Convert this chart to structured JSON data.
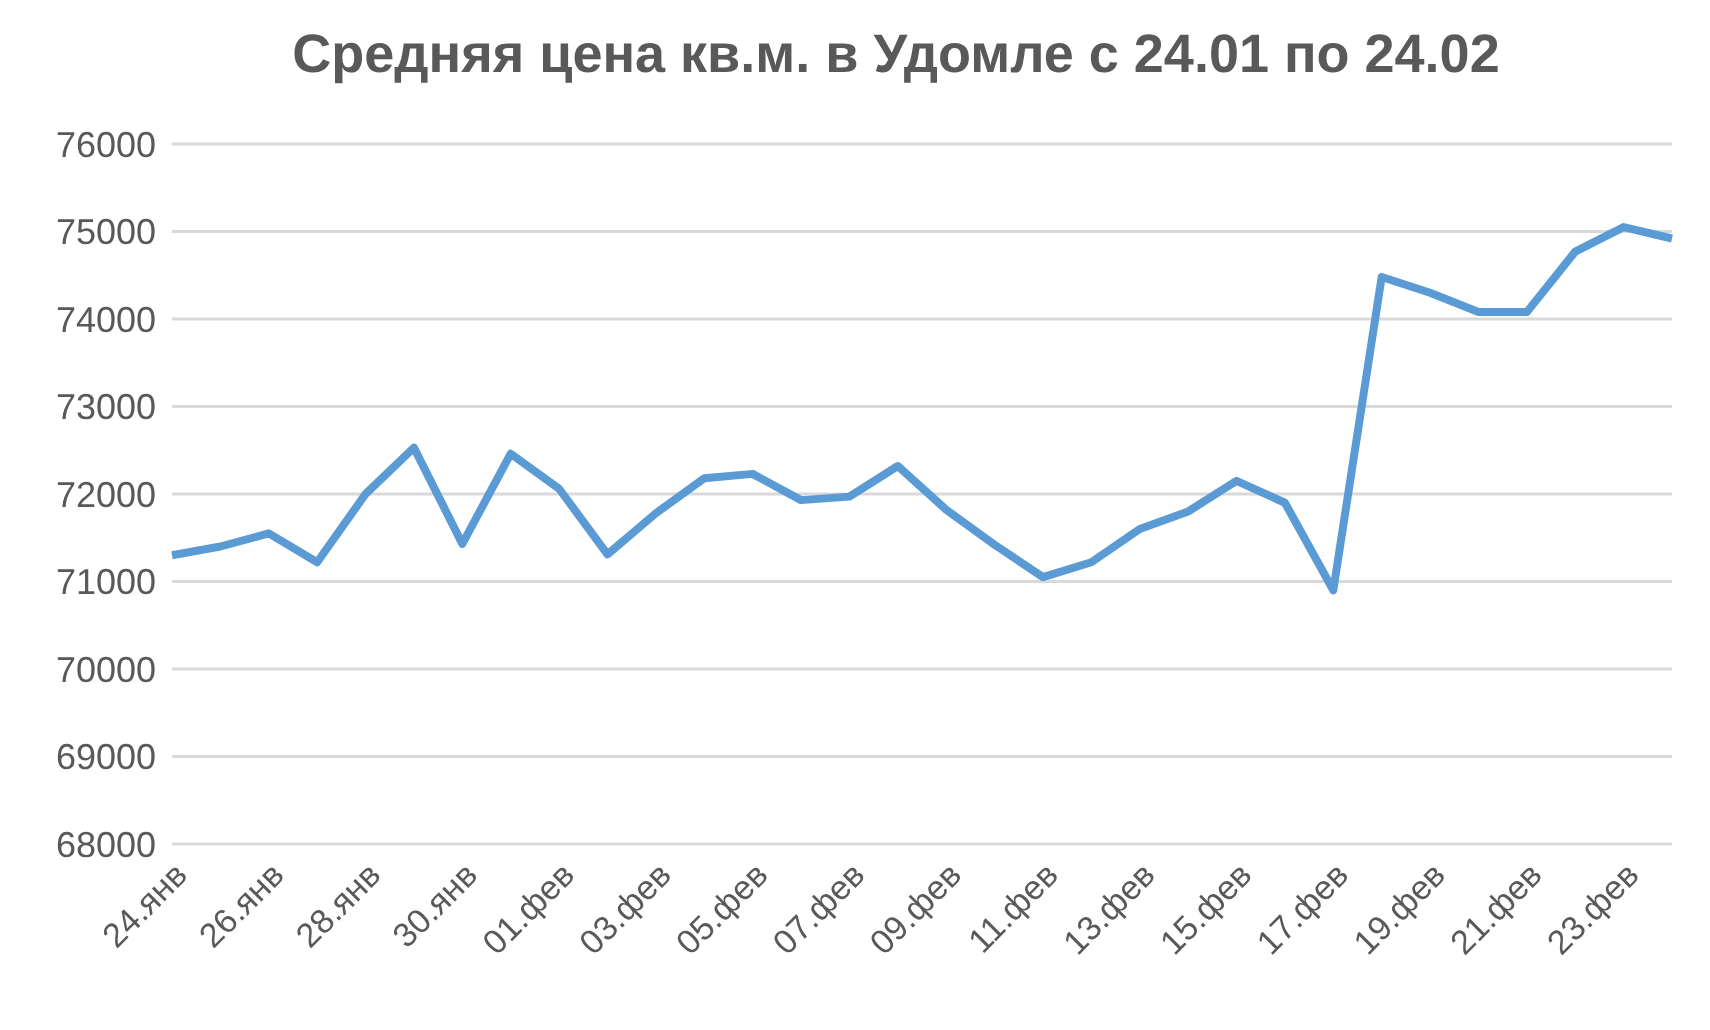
{
  "chart_data": {
    "type": "line",
    "title": "Средняя цена кв.м. в Удомле с 24.01 по 24.02",
    "categories": [
      "24.янв",
      null,
      "26.янв",
      null,
      "28.янв",
      null,
      "30.янв",
      null,
      "01.фев",
      null,
      "03.фев",
      null,
      "05.фев",
      null,
      "07.фев",
      null,
      "09.фев",
      null,
      "11.фев",
      null,
      "13.фев",
      null,
      "15.фев",
      null,
      "17.фев",
      null,
      "19.фев",
      null,
      "21.фев",
      null,
      "23.фев",
      null
    ],
    "series": [
      {
        "color": "#5b9bd5",
        "values": [
          71300,
          71400,
          71550,
          71220,
          72000,
          72530,
          71430,
          72460,
          72060,
          71310,
          71780,
          72180,
          72230,
          71930,
          71970,
          72320,
          71820,
          71420,
          71050,
          71220,
          71600,
          71800,
          72150,
          71900,
          70900,
          74480,
          74300,
          74080,
          74080,
          74770,
          75050,
          74920
        ]
      }
    ],
    "ylim": [
      68000,
      76000
    ],
    "yticks": [
      68000,
      69000,
      70000,
      71000,
      72000,
      73000,
      74000,
      75000,
      76000
    ],
    "grid": "y",
    "marker": "none",
    "line_style": "solid",
    "legend": false
  }
}
